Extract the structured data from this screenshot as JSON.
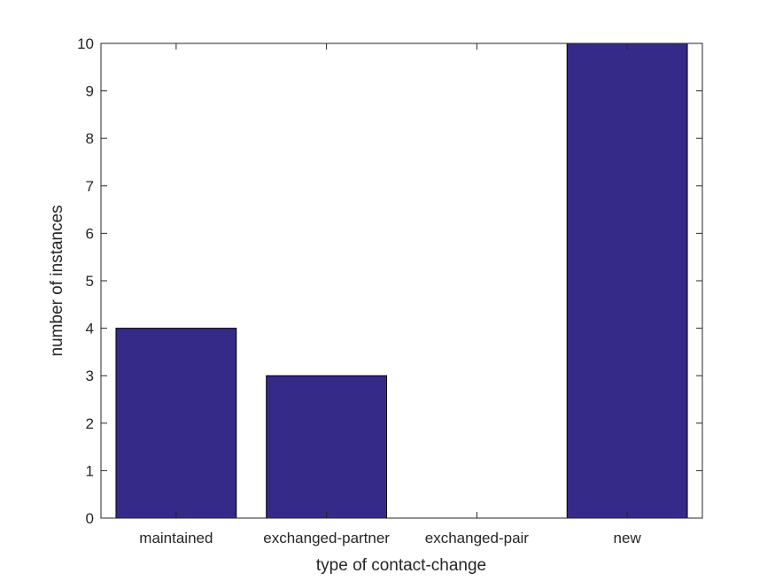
{
  "chart_data": {
    "type": "bar",
    "categories": [
      "maintained",
      "exchanged-partner",
      "exchanged-pair",
      "new"
    ],
    "values": [
      4,
      3,
      0,
      10
    ],
    "title": "",
    "xlabel": "type of contact-change",
    "ylabel": "number of instances",
    "ylim": [
      0,
      10
    ],
    "yticks": [
      0,
      1,
      2,
      3,
      4,
      5,
      6,
      7,
      8,
      9,
      10
    ],
    "grid": false,
    "bar_color": "#352a87",
    "bar_edge_color": "#000000"
  }
}
